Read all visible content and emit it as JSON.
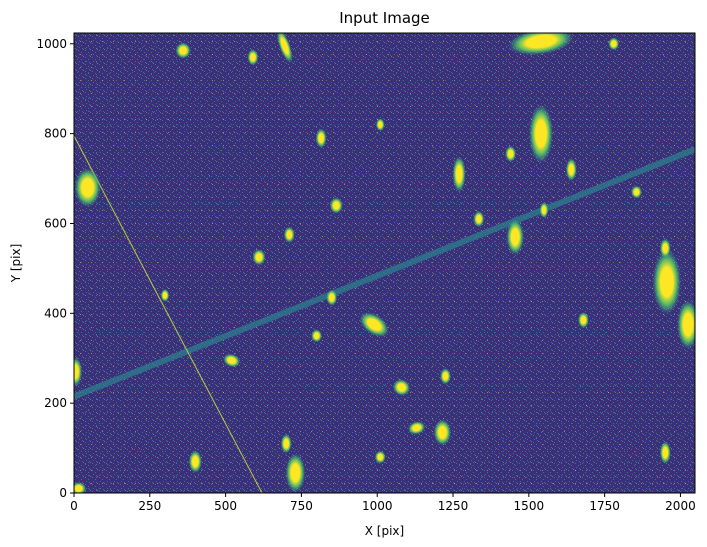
{
  "chart_data": {
    "type": "heatmap",
    "title": "Input Image",
    "xlabel": "X [pix]",
    "ylabel": "Y [pix]",
    "xlim": [
      0,
      2048
    ],
    "ylim": [
      0,
      1024
    ],
    "xticks": [
      0,
      250,
      500,
      750,
      1000,
      1250,
      1500,
      1750,
      2000
    ],
    "yticks": [
      0,
      200,
      400,
      600,
      800,
      1000
    ],
    "grid": false,
    "colormap": "viridis",
    "colors": {
      "background": "#3b2f7d",
      "noise_mid": "#2c7f8e",
      "bright": "#fde725",
      "halo": "#21a885"
    },
    "streaks": [
      {
        "name": "satellite-trail-wide",
        "x0": 0,
        "y0": 215,
        "x1": 2048,
        "y1": 765
      },
      {
        "name": "satellite-trail-thin",
        "x0": 0,
        "y0": 795,
        "x1": 620,
        "y1": 0
      }
    ],
    "sources": [
      {
        "x": 1540,
        "y": 1005,
        "rx": 60,
        "ry": 16,
        "rot": 8
      },
      {
        "x": 1540,
        "y": 800,
        "rx": 22,
        "ry": 36,
        "rot": 0
      },
      {
        "x": 45,
        "y": 680,
        "rx": 24,
        "ry": 24,
        "rot": 0
      },
      {
        "x": 1955,
        "y": 470,
        "rx": 26,
        "ry": 40,
        "rot": 0
      },
      {
        "x": 2025,
        "y": 375,
        "rx": 20,
        "ry": 30,
        "rot": 0
      },
      {
        "x": 730,
        "y": 45,
        "rx": 18,
        "ry": 24,
        "rot": 0
      },
      {
        "x": 1215,
        "y": 135,
        "rx": 16,
        "ry": 16,
        "rot": 0
      },
      {
        "x": 1455,
        "y": 570,
        "rx": 16,
        "ry": 22,
        "rot": 0
      },
      {
        "x": 1270,
        "y": 710,
        "rx": 12,
        "ry": 22,
        "rot": 0
      },
      {
        "x": 990,
        "y": 375,
        "rx": 30,
        "ry": 12,
        "rot": -35
      },
      {
        "x": 695,
        "y": 995,
        "rx": 10,
        "ry": 22,
        "rot": 20
      },
      {
        "x": 360,
        "y": 985,
        "rx": 14,
        "ry": 10,
        "rot": 0
      },
      {
        "x": 400,
        "y": 70,
        "rx": 12,
        "ry": 14,
        "rot": 0
      },
      {
        "x": 1950,
        "y": 90,
        "rx": 10,
        "ry": 14,
        "rot": 0
      },
      {
        "x": 1080,
        "y": 235,
        "rx": 16,
        "ry": 10,
        "rot": -30
      },
      {
        "x": 815,
        "y": 790,
        "rx": 10,
        "ry": 12,
        "rot": 0
      },
      {
        "x": 520,
        "y": 295,
        "rx": 16,
        "ry": 8,
        "rot": -20
      },
      {
        "x": 610,
        "y": 525,
        "rx": 12,
        "ry": 10,
        "rot": 0
      },
      {
        "x": 1130,
        "y": 145,
        "rx": 16,
        "ry": 8,
        "rot": 15
      },
      {
        "x": 850,
        "y": 435,
        "rx": 10,
        "ry": 10,
        "rot": 0
      },
      {
        "x": 865,
        "y": 640,
        "rx": 12,
        "ry": 10,
        "rot": 0
      },
      {
        "x": 1335,
        "y": 610,
        "rx": 10,
        "ry": 10,
        "rot": 0
      },
      {
        "x": 1640,
        "y": 720,
        "rx": 10,
        "ry": 14,
        "rot": 0
      },
      {
        "x": 1680,
        "y": 385,
        "rx": 10,
        "ry": 10,
        "rot": 0
      },
      {
        "x": 1855,
        "y": 670,
        "rx": 10,
        "ry": 8,
        "rot": 0
      },
      {
        "x": 1440,
        "y": 755,
        "rx": 10,
        "ry": 10,
        "rot": 0
      },
      {
        "x": 1225,
        "y": 260,
        "rx": 10,
        "ry": 10,
        "rot": 0
      },
      {
        "x": 1950,
        "y": 545,
        "rx": 10,
        "ry": 12,
        "rot": 0
      },
      {
        "x": 710,
        "y": 575,
        "rx": 10,
        "ry": 10,
        "rot": 0
      },
      {
        "x": 700,
        "y": 110,
        "rx": 10,
        "ry": 12,
        "rot": 0
      },
      {
        "x": 1010,
        "y": 80,
        "rx": 10,
        "ry": 8,
        "rot": 0
      },
      {
        "x": 5,
        "y": 270,
        "rx": 12,
        "ry": 18,
        "rot": 0
      },
      {
        "x": 15,
        "y": 10,
        "rx": 14,
        "ry": 8,
        "rot": 0
      },
      {
        "x": 1780,
        "y": 1000,
        "rx": 10,
        "ry": 8,
        "rot": 0
      },
      {
        "x": 300,
        "y": 440,
        "rx": 8,
        "ry": 8,
        "rot": 0
      },
      {
        "x": 590,
        "y": 970,
        "rx": 10,
        "ry": 10,
        "rot": 0
      },
      {
        "x": 1010,
        "y": 820,
        "rx": 8,
        "ry": 8,
        "rot": 0
      },
      {
        "x": 1550,
        "y": 630,
        "rx": 8,
        "ry": 10,
        "rot": 0
      },
      {
        "x": 800,
        "y": 350,
        "rx": 10,
        "ry": 8,
        "rot": 0
      }
    ]
  }
}
